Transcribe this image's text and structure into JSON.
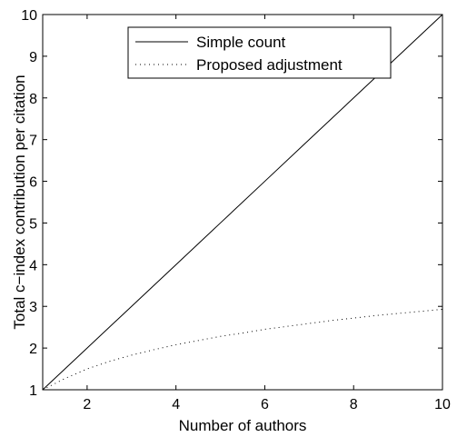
{
  "chart_data": {
    "type": "line",
    "xlabel": "Number of authors",
    "ylabel": "Total c−index contribution per citation",
    "xlim": [
      1,
      10
    ],
    "ylim": [
      1,
      10
    ],
    "x_ticks": [
      2,
      4,
      6,
      8,
      10
    ],
    "y_ticks": [
      1,
      2,
      3,
      4,
      5,
      6,
      7,
      8,
      9,
      10
    ],
    "grid": false,
    "legend_position": "top-center",
    "series": [
      {
        "name": "Simple count",
        "style": "solid",
        "color": "#000000",
        "x": [
          1,
          2,
          3,
          4,
          5,
          6,
          7,
          8,
          9,
          10
        ],
        "y": [
          1,
          2,
          3,
          4,
          5,
          6,
          7,
          8,
          9,
          10
        ]
      },
      {
        "name": "Proposed adjustment",
        "style": "dotted",
        "color": "#000000",
        "x": [
          1,
          1.5,
          2,
          2.5,
          3,
          3.5,
          4,
          4.5,
          5,
          5.5,
          6,
          6.5,
          7,
          7.5,
          8,
          8.5,
          9,
          9.5,
          10
        ],
        "y": [
          1,
          1.27,
          1.5,
          1.68,
          1.83,
          1.96,
          2.08,
          2.18,
          2.28,
          2.36,
          2.45,
          2.52,
          2.59,
          2.66,
          2.72,
          2.78,
          2.83,
          2.88,
          2.93
        ]
      }
    ]
  }
}
